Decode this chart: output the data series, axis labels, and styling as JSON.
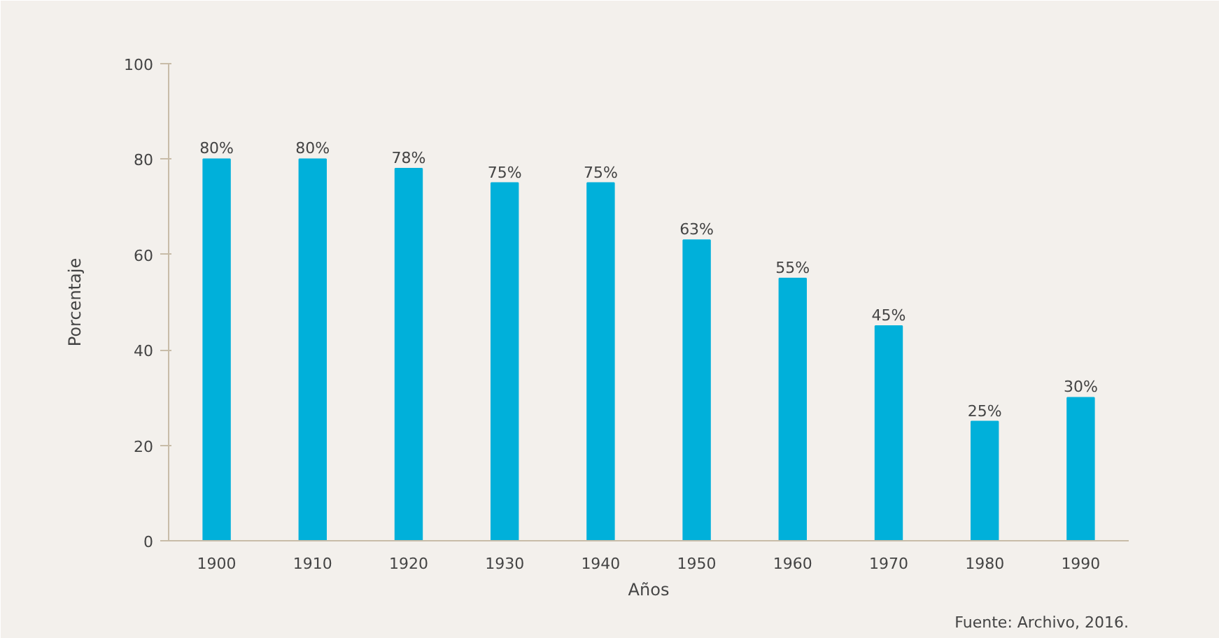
{
  "chart_data": {
    "type": "bar",
    "xlabel": "Años",
    "ylabel": "Porcentaje",
    "categories": [
      "1900",
      "1910",
      "1920",
      "1930",
      "1940",
      "1950",
      "1960",
      "1970",
      "1980",
      "1990"
    ],
    "values": [
      80,
      80,
      78,
      75,
      75,
      63,
      55,
      45,
      25,
      30
    ],
    "value_labels": [
      "80%",
      "80%",
      "78%",
      "75%",
      "75%",
      "63%",
      "55%",
      "45%",
      "25%",
      "30%"
    ],
    "color": "#00b0da",
    "ylim": [
      0,
      100
    ],
    "yticks": [
      0,
      20,
      40,
      60,
      80,
      100
    ],
    "grid": false,
    "annotations": [
      "Fuente: Archivo, 2016."
    ]
  }
}
